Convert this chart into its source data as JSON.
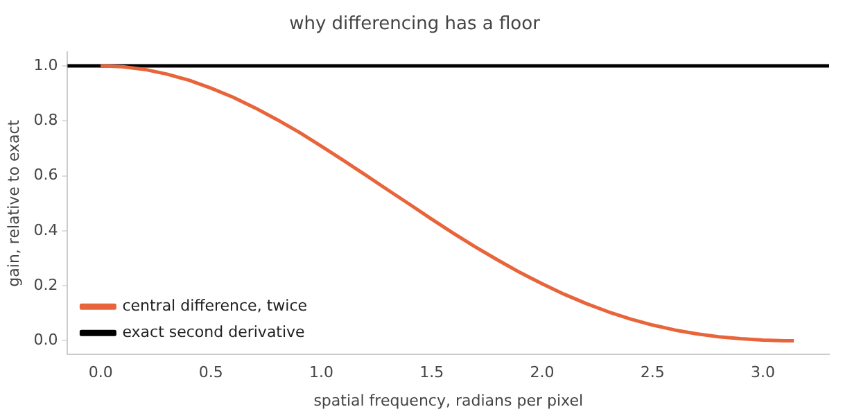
{
  "chart_data": {
    "type": "line",
    "title": "why differencing has a floor",
    "xlabel": "spatial frequency, radians per pixel",
    "ylabel": "gain, relative to exact",
    "xlim": [
      -0.15,
      3.3
    ],
    "ylim": [
      -0.05,
      1.05
    ],
    "xticks": [
      {
        "value": 0,
        "label": "0.0"
      },
      0.5,
      {
        "value": 1,
        "label": "1.0"
      },
      1.5,
      {
        "value": 2,
        "label": "2.0"
      },
      2.5,
      {
        "value": 3,
        "label": "3.0"
      }
    ],
    "yticks": [
      {
        "value": 0,
        "label": "0.0"
      },
      0.2,
      0.4,
      0.6,
      0.8,
      {
        "value": 1,
        "label": "1.0"
      }
    ],
    "grid": false,
    "legend": "bottom left",
    "marker": "none",
    "line_style": "solid",
    "series": [
      {
        "name": "central difference, twice",
        "color": "#e8643a",
        "x": [
          0,
          0.1,
          0.2,
          0.3,
          0.4,
          0.5,
          0.6,
          0.7,
          0.8,
          0.9,
          1,
          1.1,
          1.2,
          1.3,
          1.4,
          1.5,
          1.6,
          1.7,
          1.8,
          1.9,
          2,
          2.1,
          2.2,
          2.3,
          2.4,
          2.5,
          2.6,
          2.7,
          2.8,
          2.9,
          3,
          3.1,
          3.14
        ],
        "values": [
          1,
          0.997,
          0.987,
          0.97,
          0.948,
          0.919,
          0.886,
          0.847,
          0.804,
          0.758,
          0.708,
          0.656,
          0.603,
          0.549,
          0.496,
          0.442,
          0.39,
          0.34,
          0.293,
          0.248,
          0.207,
          0.169,
          0.135,
          0.105,
          0.079,
          0.057,
          0.039,
          0.025,
          0.014,
          0.007,
          0.002,
          0,
          0
        ]
      },
      {
        "name": "exact second derivative",
        "color": "#000000",
        "x": [
          -0.15,
          3.3
        ],
        "values": [
          1,
          1
        ]
      }
    ]
  }
}
